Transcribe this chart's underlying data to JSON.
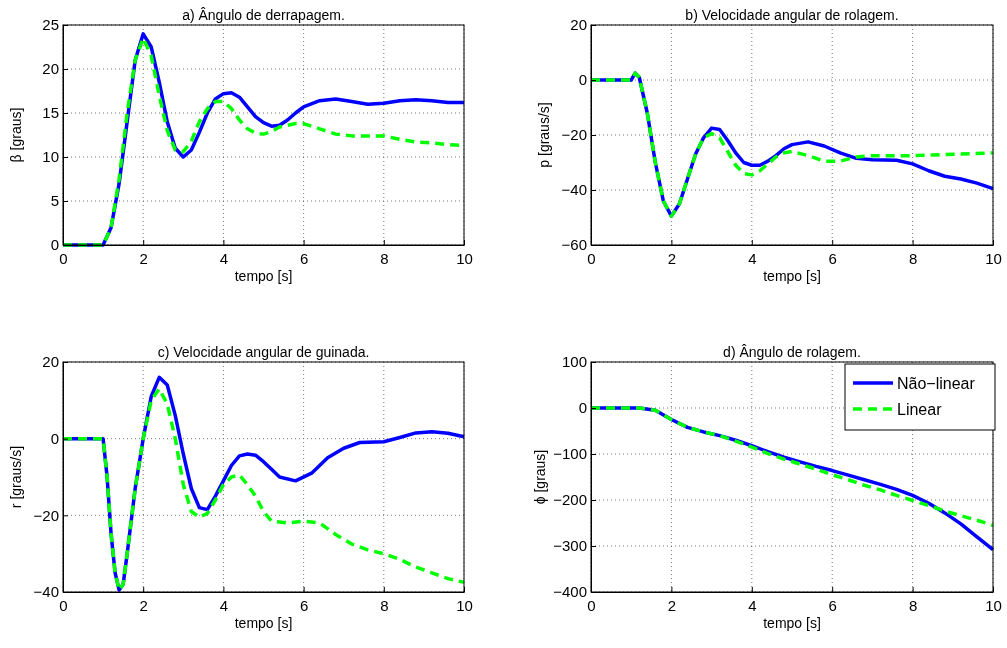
{
  "chart_data": [
    {
      "type": "line",
      "title": "a) Ângulo de derrapagem.",
      "xlabel": "tempo [s]",
      "ylabel": "β [graus]",
      "xlim": [
        0,
        10
      ],
      "ylim": [
        0,
        25
      ],
      "xticks": [
        0,
        2,
        4,
        6,
        8,
        10
      ],
      "yticks": [
        0,
        5,
        10,
        15,
        20,
        25
      ],
      "grid": true,
      "legend": false,
      "series": [
        {
          "color": "#0000ff",
          "line_style": "solid",
          "x": [
            0,
            1,
            1.2,
            1.4,
            1.6,
            1.8,
            2.0,
            2.2,
            2.4,
            2.6,
            2.8,
            3.0,
            3.2,
            3.4,
            3.6,
            3.8,
            4.0,
            4.2,
            4.4,
            4.6,
            4.8,
            5.0,
            5.2,
            5.4,
            5.6,
            5.8,
            6.0,
            6.4,
            6.8,
            7.2,
            7.6,
            8.0,
            8.4,
            8.8,
            9.2,
            9.6,
            10
          ],
          "values": [
            0,
            0,
            2,
            7,
            14,
            21,
            24,
            22.5,
            18.5,
            14,
            11,
            10,
            10.8,
            12.8,
            15,
            16.6,
            17.2,
            17.3,
            16.8,
            15.7,
            14.6,
            13.9,
            13.5,
            13.6,
            14.2,
            15,
            15.7,
            16.4,
            16.6,
            16.3,
            16.0,
            16.1,
            16.4,
            16.5,
            16.4,
            16.2,
            16.2
          ]
        },
        {
          "color": "#00ff00",
          "line_style": "dashed",
          "x": [
            0,
            1,
            1.2,
            1.4,
            1.6,
            1.8,
            2.0,
            2.2,
            2.4,
            2.6,
            2.8,
            3.0,
            3.2,
            3.4,
            3.6,
            3.8,
            4.0,
            4.2,
            4.4,
            4.6,
            4.8,
            5.0,
            5.2,
            5.4,
            5.8,
            6.0,
            6.4,
            6.8,
            7.2,
            7.6,
            8.0,
            8.4,
            8.8,
            9.2,
            9.6,
            10
          ],
          "values": [
            0,
            0,
            2,
            7.5,
            15,
            21,
            23.5,
            21.5,
            17,
            13,
            10.8,
            10.6,
            11.8,
            14,
            15.5,
            16.3,
            16.3,
            15.5,
            14.2,
            13.2,
            12.7,
            12.6,
            12.9,
            13.4,
            13.8,
            13.8,
            13.2,
            12.6,
            12.4,
            12.4,
            12.4,
            12.0,
            11.7,
            11.6,
            11.4,
            11.3
          ]
        }
      ]
    },
    {
      "type": "line",
      "title": "b) Velocidade angular de rolagem.",
      "xlabel": "tempo [s]",
      "ylabel": "p [graus/s]",
      "xlim": [
        0,
        10
      ],
      "ylim": [
        -60,
        20
      ],
      "xticks": [
        0,
        2,
        4,
        6,
        8,
        10
      ],
      "yticks": [
        -60,
        -40,
        -20,
        0,
        20
      ],
      "grid": true,
      "legend": false,
      "series": [
        {
          "color": "#0000ff",
          "line_style": "solid",
          "x": [
            0,
            1.0,
            1.1,
            1.2,
            1.4,
            1.6,
            1.8,
            2.0,
            2.2,
            2.4,
            2.6,
            2.8,
            3.0,
            3.2,
            3.4,
            3.6,
            3.8,
            4.0,
            4.2,
            4.4,
            4.6,
            4.8,
            5.0,
            5.4,
            5.8,
            6.2,
            6.6,
            7.0,
            7.6,
            8.0,
            8.4,
            8.8,
            9.2,
            9.6,
            10
          ],
          "values": [
            0,
            0,
            2.5,
            1,
            -12,
            -30,
            -44,
            -49.5,
            -45,
            -36,
            -27,
            -21,
            -17.5,
            -18,
            -22,
            -26.5,
            -30,
            -31,
            -31,
            -29.5,
            -27.5,
            -25,
            -23.5,
            -22.5,
            -24,
            -26.5,
            -28.5,
            -29,
            -29.2,
            -30.5,
            -33,
            -35,
            -36,
            -37.5,
            -39.5
          ]
        },
        {
          "color": "#00ff00",
          "line_style": "dashed",
          "x": [
            0,
            1.0,
            1.1,
            1.2,
            1.4,
            1.6,
            1.8,
            2.0,
            2.2,
            2.4,
            2.6,
            2.8,
            3.0,
            3.2,
            3.4,
            3.6,
            3.8,
            4.0,
            4.2,
            4.4,
            4.6,
            4.8,
            5.0,
            5.4,
            5.8,
            6.2,
            6.6,
            7.0,
            8.0,
            9.0,
            10
          ],
          "values": [
            0,
            0,
            2.5,
            1,
            -12,
            -30,
            -44,
            -49.5,
            -45,
            -36,
            -27,
            -21,
            -19.5,
            -21,
            -26,
            -31,
            -34,
            -34.5,
            -33,
            -30.5,
            -28,
            -26.5,
            -26,
            -27.5,
            -29.5,
            -29.5,
            -28,
            -27.5,
            -27.5,
            -27,
            -26.5
          ]
        }
      ]
    },
    {
      "type": "line",
      "title": "c) Velocidade angular de guinada.",
      "xlabel": "tempo [s]",
      "ylabel": "r [graus/s]",
      "xlim": [
        0,
        10
      ],
      "ylim": [
        -40,
        20
      ],
      "xticks": [
        0,
        2,
        4,
        6,
        8,
        10
      ],
      "yticks": [
        -40,
        -20,
        0,
        20
      ],
      "grid": true,
      "legend": false,
      "series": [
        {
          "color": "#0000ff",
          "line_style": "solid",
          "x": [
            0,
            1.0,
            1.1,
            1.2,
            1.3,
            1.4,
            1.5,
            1.6,
            1.8,
            2.0,
            2.2,
            2.4,
            2.6,
            2.8,
            3.0,
            3.2,
            3.4,
            3.6,
            3.8,
            4.0,
            4.2,
            4.4,
            4.6,
            4.8,
            5.0,
            5.2,
            5.4,
            5.8,
            6.2,
            6.6,
            7.0,
            7.4,
            8.0,
            8.4,
            8.8,
            9.2,
            9.6,
            10
          ],
          "values": [
            0,
            0,
            -10,
            -25,
            -35,
            -39.5,
            -38,
            -30,
            -13,
            0,
            11,
            16,
            14,
            6,
            -4,
            -13,
            -18,
            -18.5,
            -15,
            -11,
            -7,
            -4.5,
            -4,
            -4.3,
            -6,
            -8,
            -10,
            -11,
            -9,
            -5,
            -2.5,
            -1,
            -0.8,
            0.3,
            1.5,
            1.8,
            1.4,
            0.5
          ]
        },
        {
          "color": "#00ff00",
          "line_style": "dashed",
          "x": [
            0,
            1.0,
            1.1,
            1.2,
            1.3,
            1.4,
            1.5,
            1.6,
            1.8,
            2.0,
            2.2,
            2.4,
            2.6,
            2.8,
            3.0,
            3.2,
            3.4,
            3.6,
            3.8,
            4.0,
            4.2,
            4.4,
            4.6,
            4.8,
            5.0,
            5.2,
            5.6,
            6.0,
            6.4,
            6.8,
            7.2,
            7.6,
            8.0,
            8.4,
            8.8,
            9.2,
            9.6,
            10
          ],
          "values": [
            0,
            0,
            -10,
            -25,
            -35,
            -39.5,
            -38,
            -30,
            -13,
            0,
            10,
            13,
            9,
            0,
            -12,
            -19,
            -20.5,
            -19.5,
            -16,
            -12,
            -10,
            -9.5,
            -12,
            -15,
            -19,
            -21.5,
            -22,
            -21.5,
            -22,
            -25,
            -27.5,
            -29,
            -30,
            -31.5,
            -33.5,
            -35,
            -36.5,
            -37.5
          ]
        }
      ]
    },
    {
      "type": "line",
      "title": "d) Ângulo de rolagem.",
      "xlabel": "tempo [s]",
      "ylabel": "ϕ [graus]",
      "xlim": [
        0,
        10
      ],
      "ylim": [
        -400,
        100
      ],
      "xticks": [
        0,
        2,
        4,
        6,
        8,
        10
      ],
      "yticks": [
        -400,
        -300,
        -200,
        -100,
        0,
        100
      ],
      "grid": true,
      "legend": "top right",
      "series": [
        {
          "name": "Não−linear",
          "color": "#0000ff",
          "line_style": "solid",
          "x": [
            0,
            1.2,
            1.6,
            2.0,
            2.4,
            2.8,
            3.2,
            3.6,
            4.0,
            4.4,
            4.8,
            5.2,
            5.6,
            6.0,
            6.4,
            6.8,
            7.2,
            7.6,
            8.0,
            8.4,
            8.8,
            9.2,
            9.6,
            10
          ],
          "values": [
            0,
            0,
            -5,
            -25,
            -42,
            -52,
            -60,
            -70,
            -82,
            -95,
            -107,
            -117,
            -127,
            -136,
            -146,
            -156,
            -166,
            -177,
            -190,
            -207,
            -228,
            -252,
            -280,
            -308
          ]
        },
        {
          "name": "Linear",
          "color": "#00ff00",
          "line_style": "dashed",
          "x": [
            0,
            1.2,
            1.6,
            2.0,
            2.4,
            2.8,
            3.2,
            3.6,
            4.0,
            4.4,
            4.8,
            5.2,
            5.6,
            6.0,
            6.4,
            6.8,
            7.2,
            7.6,
            8.0,
            8.4,
            8.8,
            9.2,
            9.6,
            10
          ],
          "values": [
            0,
            0,
            -5,
            -25,
            -42,
            -52,
            -60,
            -72,
            -85,
            -99,
            -111,
            -122,
            -133,
            -145,
            -156,
            -168,
            -178,
            -190,
            -201,
            -212,
            -224,
            -234,
            -244,
            -255
          ]
        }
      ]
    }
  ]
}
